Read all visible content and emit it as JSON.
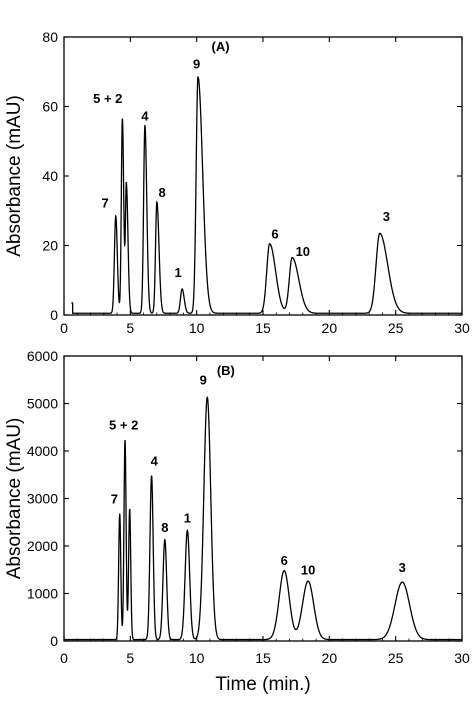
{
  "chart_data": [
    {
      "type": "line",
      "panel_label": "(A)",
      "xlabel": "",
      "ylabel": "Absorbance (mAU)",
      "xlim": [
        0,
        30
      ],
      "ylim": [
        0,
        80
      ],
      "xticks": [
        0,
        5,
        10,
        15,
        20,
        25,
        30
      ],
      "yticks": [
        0,
        20,
        40,
        60,
        80
      ],
      "grid": false,
      "baseline": 0.5,
      "peaks": [
        {
          "label": "7",
          "x": 3.9,
          "y": 28,
          "wl": 0.1,
          "wr": 0.12
        },
        {
          "label": "5 + 2",
          "x": 4.4,
          "y": 56,
          "wl": 0.08,
          "wr": 0.1
        },
        {
          "label": "",
          "x": 4.7,
          "y": 37,
          "wl": 0.07,
          "wr": 0.12
        },
        {
          "label": "4",
          "x": 6.1,
          "y": 54,
          "wl": 0.1,
          "wr": 0.14
        },
        {
          "label": "8",
          "x": 7.0,
          "y": 32,
          "wl": 0.1,
          "wr": 0.16
        },
        {
          "label": "1",
          "x": 8.9,
          "y": 7,
          "wl": 0.12,
          "wr": 0.16
        },
        {
          "label": "9",
          "x": 10.1,
          "y": 68,
          "wl": 0.14,
          "wr": 0.35
        },
        {
          "label": "6",
          "x": 15.5,
          "y": 20,
          "wl": 0.22,
          "wr": 0.45
        },
        {
          "label": "10",
          "x": 17.2,
          "y": 16,
          "wl": 0.22,
          "wr": 0.5
        },
        {
          "label": "3",
          "x": 23.8,
          "y": 23,
          "wl": 0.28,
          "wr": 0.6
        }
      ],
      "label_positions": [
        {
          "label": "7",
          "x": 3.1,
          "y": 31
        },
        {
          "label": "5 + 2",
          "x": 3.3,
          "y": 61
        },
        {
          "label": "4",
          "x": 6.1,
          "y": 56
        },
        {
          "label": "8",
          "x": 7.4,
          "y": 34
        },
        {
          "label": "1",
          "x": 8.6,
          "y": 11
        },
        {
          "label": "9",
          "x": 10.0,
          "y": 71
        },
        {
          "label": "6",
          "x": 15.9,
          "y": 22
        },
        {
          "label": "10",
          "x": 18.0,
          "y": 17
        },
        {
          "label": "3",
          "x": 24.3,
          "y": 27
        }
      ]
    },
    {
      "type": "line",
      "panel_label": "(B)",
      "xlabel": "Time (min.)",
      "ylabel": "Absorbance (mAU)",
      "xlim": [
        0,
        30
      ],
      "ylim": [
        0,
        6000
      ],
      "xticks": [
        0,
        5,
        10,
        15,
        20,
        25,
        30
      ],
      "yticks": [
        0,
        1000,
        2000,
        3000,
        4000,
        5000,
        6000
      ],
      "grid": false,
      "baseline": 30,
      "peaks": [
        {
          "label": "7",
          "x": 4.2,
          "y": 2650,
          "wl": 0.08,
          "wr": 0.08
        },
        {
          "label": "5 + 2",
          "x": 4.6,
          "y": 4200,
          "wl": 0.08,
          "wr": 0.08
        },
        {
          "label": "",
          "x": 4.95,
          "y": 2750,
          "wl": 0.08,
          "wr": 0.08
        },
        {
          "label": "4",
          "x": 6.6,
          "y": 3450,
          "wl": 0.12,
          "wr": 0.12
        },
        {
          "label": "8",
          "x": 7.6,
          "y": 2100,
          "wl": 0.14,
          "wr": 0.14
        },
        {
          "label": "1",
          "x": 9.3,
          "y": 2300,
          "wl": 0.17,
          "wr": 0.17
        },
        {
          "label": "9",
          "x": 10.8,
          "y": 5100,
          "wl": 0.26,
          "wr": 0.26
        },
        {
          "label": "6",
          "x": 16.6,
          "y": 1450,
          "wl": 0.38,
          "wr": 0.38
        },
        {
          "label": "10",
          "x": 18.4,
          "y": 1230,
          "wl": 0.42,
          "wr": 0.42
        },
        {
          "label": "3",
          "x": 25.5,
          "y": 1210,
          "wl": 0.55,
          "wr": 0.55
        }
      ],
      "label_positions": [
        {
          "label": "7",
          "x": 3.8,
          "y": 2900
        },
        {
          "label": "5 + 2",
          "x": 4.5,
          "y": 4450
        },
        {
          "label": "4",
          "x": 6.8,
          "y": 3700
        },
        {
          "label": "8",
          "x": 7.6,
          "y": 2300
        },
        {
          "label": "1",
          "x": 9.3,
          "y": 2500
        },
        {
          "label": "9",
          "x": 10.5,
          "y": 5400
        },
        {
          "label": "6",
          "x": 16.6,
          "y": 1600
        },
        {
          "label": "10",
          "x": 18.4,
          "y": 1400
        },
        {
          "label": "3",
          "x": 25.5,
          "y": 1450
        }
      ]
    }
  ]
}
